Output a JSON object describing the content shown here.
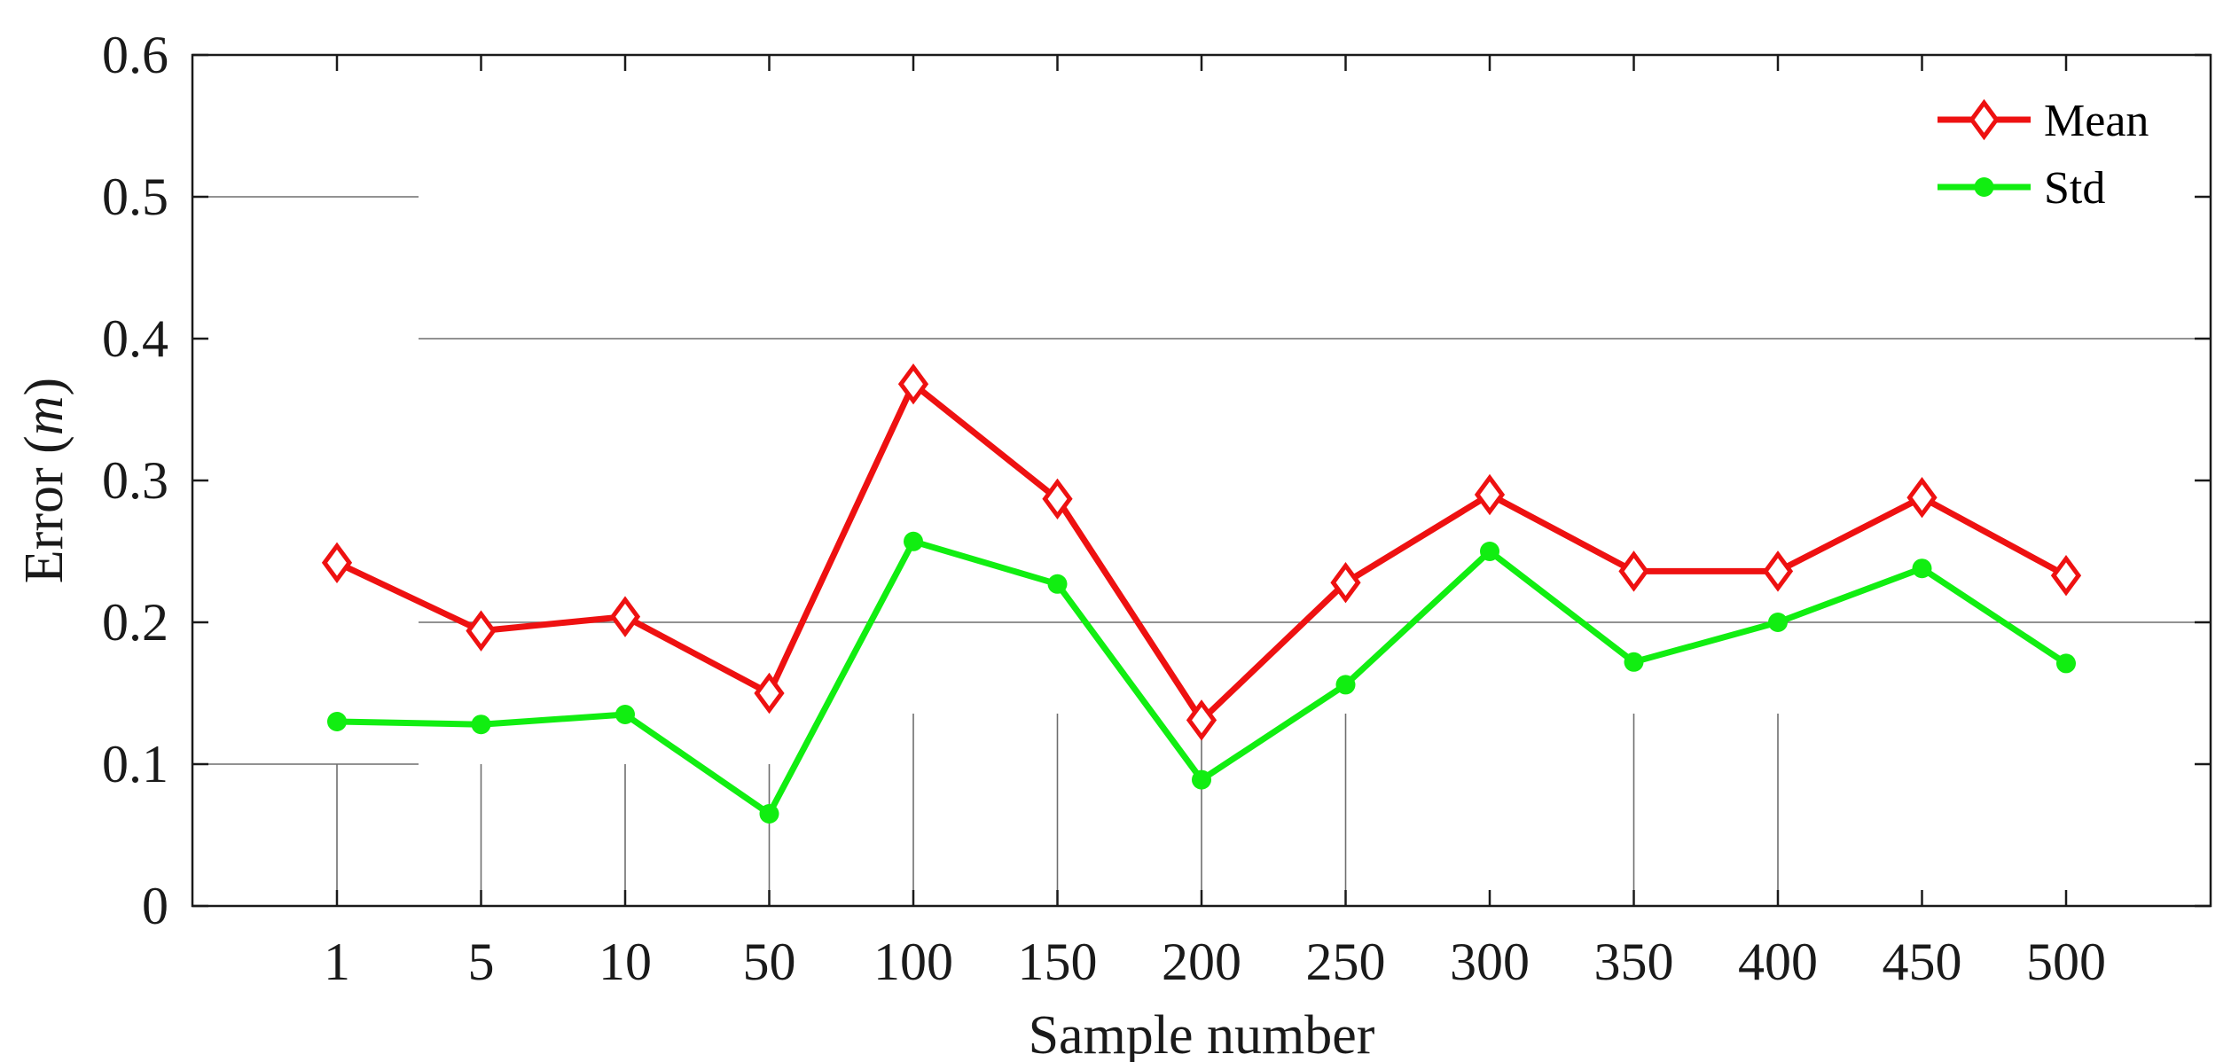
{
  "chart_data": {
    "type": "line",
    "xlabel": "Sample number",
    "ylabel_prefix": "Error (",
    "ylabel_unit": "m",
    "ylabel_suffix": ")",
    "categories": [
      "1",
      "5",
      "10",
      "50",
      "100",
      "150",
      "200",
      "250",
      "300",
      "350",
      "400",
      "450",
      "500"
    ],
    "ylim": [
      0,
      0.6
    ],
    "yticks": [
      "0",
      "0.1",
      "0.2",
      "0.3",
      "0.4",
      "0.5",
      "0.6"
    ],
    "legend_position": "top-right",
    "grid": "partial",
    "series": [
      {
        "name": "Mean",
        "color": "#ee1111",
        "marker": "diamond-open",
        "values": [
          0.242,
          0.194,
          0.204,
          0.15,
          0.368,
          0.287,
          0.131,
          0.228,
          0.29,
          0.236,
          0.236,
          0.288,
          0.233
        ]
      },
      {
        "name": "Std",
        "color": "#11ee11",
        "marker": "circle-filled",
        "values": [
          0.13,
          0.128,
          0.135,
          0.065,
          0.257,
          0.227,
          0.089,
          0.156,
          0.25,
          0.172,
          0.2,
          0.238,
          0.171
        ]
      }
    ]
  }
}
